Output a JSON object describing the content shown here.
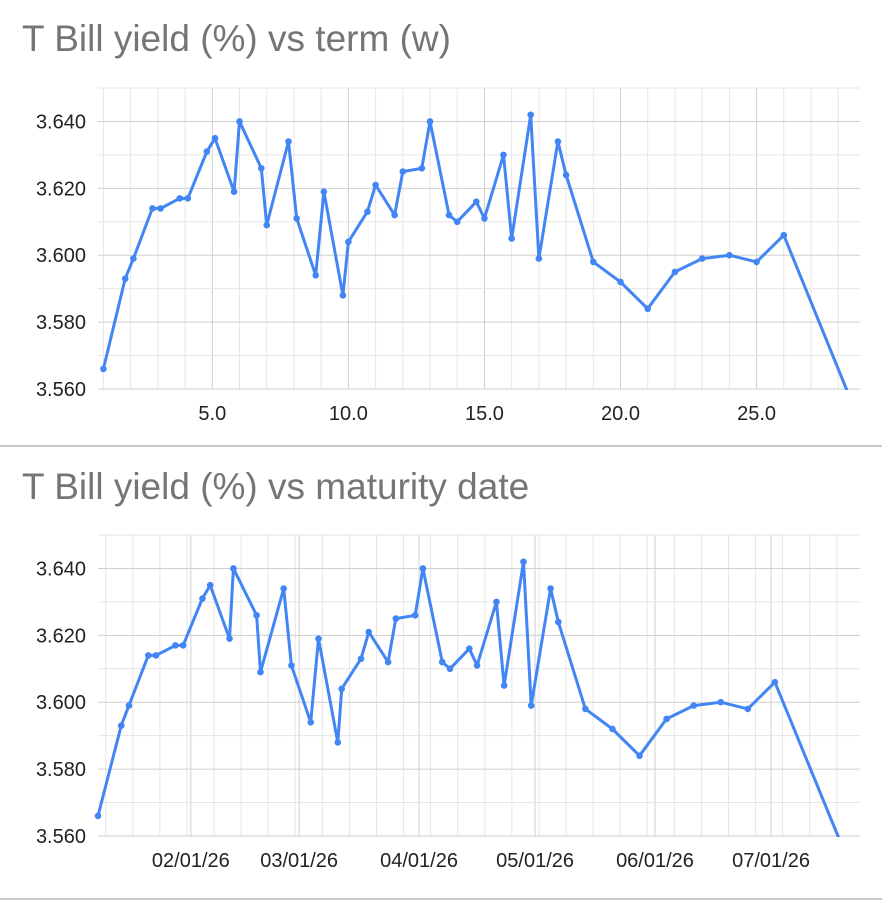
{
  "chart_data": [
    {
      "type": "line",
      "title": "T Bill yield (%) vs term (w)",
      "xlabel": "",
      "ylabel": "",
      "xlim": [
        0.8,
        28.8
      ],
      "ylim": [
        3.56,
        3.65
      ],
      "x_ticks": [
        "5.0",
        "10.0",
        "15.0",
        "20.0",
        "25.0"
      ],
      "y_ticks": [
        "3.560",
        "3.580",
        "3.600",
        "3.620",
        "3.640"
      ],
      "grid": true,
      "series": [
        {
          "color": "#4285f4",
          "x": [
            1.0,
            1.8,
            2.1,
            2.8,
            3.1,
            3.8,
            4.1,
            4.8,
            5.1,
            5.8,
            6.0,
            6.8,
            7.0,
            7.8,
            8.1,
            8.8,
            9.1,
            9.8,
            10.0,
            10.7,
            11.0,
            11.7,
            12.0,
            12.7,
            13.0,
            13.7,
            14.0,
            14.7,
            15.0,
            15.7,
            16.0,
            16.7,
            17.0,
            17.7,
            18.0,
            19.0,
            20.0,
            21.0,
            22.0,
            23.0,
            24.0,
            25.0,
            26.0,
            28.4
          ],
          "y": [
            3.566,
            3.593,
            3.599,
            3.614,
            3.614,
            3.617,
            3.617,
            3.631,
            3.635,
            3.619,
            3.64,
            3.626,
            3.609,
            3.634,
            3.611,
            3.594,
            3.619,
            3.588,
            3.604,
            3.613,
            3.621,
            3.612,
            3.625,
            3.626,
            3.64,
            3.612,
            3.61,
            3.616,
            3.611,
            3.63,
            3.605,
            3.642,
            3.599,
            3.634,
            3.624,
            3.598,
            3.592,
            3.584,
            3.595,
            3.599,
            3.6,
            3.598,
            3.606,
            3.558
          ]
        }
      ]
    },
    {
      "type": "line",
      "title": "T Bill yield (%) vs maturity date",
      "xlabel": "",
      "ylabel": "",
      "xlim": [
        "2026-01-08",
        "2026-07-24"
      ],
      "ylim": [
        3.56,
        3.65
      ],
      "x_ticks": [
        "02/01/26",
        "03/01/26",
        "04/01/26",
        "05/01/26",
        "06/01/26",
        "07/01/26"
      ],
      "y_ticks": [
        "3.560",
        "3.580",
        "3.600",
        "3.620",
        "3.640"
      ],
      "grid": true,
      "series": [
        {
          "color": "#4285f4",
          "x": [
            "2026-01-08",
            "2026-01-14",
            "2026-01-16",
            "2026-01-21",
            "2026-01-23",
            "2026-01-28",
            "2026-01-30",
            "2026-02-04",
            "2026-02-06",
            "2026-02-11",
            "2026-02-12",
            "2026-02-18",
            "2026-02-19",
            "2026-02-25",
            "2026-02-27",
            "2026-03-04",
            "2026-03-06",
            "2026-03-11",
            "2026-03-12",
            "2026-03-17",
            "2026-03-19",
            "2026-03-24",
            "2026-03-26",
            "2026-03-31",
            "2026-04-02",
            "2026-04-07",
            "2026-04-09",
            "2026-04-14",
            "2026-04-16",
            "2026-04-21",
            "2026-04-23",
            "2026-04-28",
            "2026-04-30",
            "2026-05-05",
            "2026-05-07",
            "2026-05-14",
            "2026-05-21",
            "2026-05-28",
            "2026-06-04",
            "2026-06-11",
            "2026-06-18",
            "2026-06-25",
            "2026-07-02",
            "2026-07-19"
          ],
          "y": [
            3.566,
            3.593,
            3.599,
            3.614,
            3.614,
            3.617,
            3.617,
            3.631,
            3.635,
            3.619,
            3.64,
            3.626,
            3.609,
            3.634,
            3.611,
            3.594,
            3.619,
            3.588,
            3.604,
            3.613,
            3.621,
            3.612,
            3.625,
            3.626,
            3.64,
            3.612,
            3.61,
            3.616,
            3.611,
            3.63,
            3.605,
            3.642,
            3.599,
            3.634,
            3.624,
            3.598,
            3.592,
            3.584,
            3.595,
            3.599,
            3.6,
            3.598,
            3.606,
            3.558
          ]
        }
      ]
    }
  ]
}
